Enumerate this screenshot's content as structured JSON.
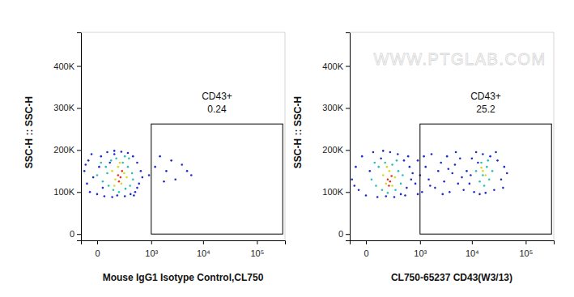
{
  "chart_data": [
    {
      "type": "scatter",
      "xlabel": "Mouse IgG1 Isotype Control,CL750",
      "ylabel": "SSC-H :: SSC-H",
      "log": "x",
      "xlim": [
        -110,
        330000
      ],
      "ylim": [
        -15000,
        480000
      ],
      "xticks": [
        0,
        {
          "value": 1000,
          "label": "10³"
        },
        {
          "value": 10000,
          "label": "10⁴"
        },
        {
          "value": 100000,
          "label": "10⁵"
        }
      ],
      "yticks": [
        0,
        {
          "value": 100000,
          "label": "100K"
        },
        {
          "value": 200000,
          "label": "200K"
        },
        {
          "value": 300000,
          "label": "300K"
        },
        {
          "value": 400000,
          "label": "400K"
        }
      ],
      "gate": {
        "name": "CD43+",
        "percent": 0.24,
        "x": [
          1000,
          300000
        ],
        "y": [
          0,
          262000
        ]
      },
      "series": [
        {
          "color": "#1f2ac8",
          "x": [
            -80,
            -60,
            -50,
            -40,
            -30,
            -20,
            0,
            10,
            20,
            30,
            40,
            60,
            80,
            100,
            120,
            150,
            200,
            250,
            300,
            350,
            400,
            450,
            500,
            550,
            600,
            650,
            500,
            -70,
            420,
            120,
            900,
            1200,
            1500,
            2000,
            2500,
            3000,
            4000,
            5000,
            6000,
            1800
          ],
          "values": [
            150000,
            120000,
            175000,
            100000,
            190000,
            135000,
            95000,
            160000,
            185000,
            110000,
            90000,
            195000,
            170000,
            88000,
            198000,
            92000,
            196000,
            90000,
            193000,
            95000,
            185000,
            100000,
            170000,
            120000,
            150000,
            135000,
            110000,
            165000,
            92000,
            190000,
            140000,
            160000,
            185000,
            150000,
            175000,
            130000,
            165000,
            150000,
            140000,
            125000
          ]
        },
        {
          "color": "#27c0b0",
          "x": [
            0,
            30,
            50,
            70,
            90,
            110,
            140,
            170,
            220,
            260,
            300,
            340,
            380,
            400,
            60,
            320,
            20,
            250
          ],
          "values": [
            140000,
            125000,
            160000,
            115000,
            175000,
            105000,
            180000,
            100000,
            170000,
            108000,
            160000,
            115000,
            145000,
            130000,
            145000,
            180000,
            170000,
            185000
          ]
        },
        {
          "color": "#d8d820",
          "x": [
            100,
            130,
            160,
            200,
            240,
            280,
            180,
            120
          ],
          "values": [
            150000,
            130000,
            160000,
            120000,
            145000,
            135000,
            170000,
            115000
          ]
        },
        {
          "color": "#e03020",
          "x": [
            160,
            190,
            210,
            170
          ],
          "values": [
            140000,
            135000,
            150000,
            125000
          ]
        }
      ]
    },
    {
      "type": "scatter",
      "xlabel": "CL750-65237 CD43(W3/13)",
      "ylabel": "SSC-H :: SSC-H",
      "watermark": "WWW.PTGLAB.COM",
      "log": "x",
      "xlim": [
        -110,
        330000
      ],
      "ylim": [
        -15000,
        480000
      ],
      "xticks": [
        0,
        {
          "value": 1000,
          "label": "10³"
        },
        {
          "value": 10000,
          "label": "10⁴"
        },
        {
          "value": 100000,
          "label": "10⁵"
        }
      ],
      "yticks": [
        0,
        {
          "value": 100000,
          "label": "100K"
        },
        {
          "value": 200000,
          "label": "200K"
        },
        {
          "value": 300000,
          "label": "300K"
        },
        {
          "value": 400000,
          "label": "400K"
        }
      ],
      "gate": {
        "name": "CD43+",
        "percent": 25.2,
        "x": [
          1000,
          300000
        ],
        "y": [
          0,
          262000
        ]
      },
      "series": [
        {
          "color": "#1f2ac8",
          "x": [
            -90,
            -60,
            -40,
            -20,
            0,
            20,
            40,
            70,
            100,
            150,
            200,
            260,
            320,
            380,
            450,
            520,
            600,
            650,
            700,
            -70,
            480,
            120,
            560,
            800,
            900,
            1000,
            1100,
            1300,
            1500,
            1700,
            2000,
            2300,
            2600,
            3000,
            3400,
            3800,
            4300,
            4800,
            5500,
            6000,
            6500,
            7000,
            1200,
            2800,
            1600,
            5000,
            3600,
            900,
            8000,
            9000,
            10000,
            11000,
            12000,
            14000,
            16000,
            18000,
            22000,
            26000,
            30000,
            35000,
            40000,
            45000,
            9500,
            13000,
            28000,
            38000
          ],
          "values": [
            130000,
            160000,
            105000,
            185000,
            92000,
            150000,
            195000,
            88000,
            180000,
            90000,
            195000,
            88000,
            190000,
            95000,
            175000,
            110000,
            160000,
            130000,
            145000,
            115000,
            92000,
            198000,
            185000,
            120000,
            175000,
            140000,
            100000,
            160000,
            130000,
            190000,
            110000,
            150000,
            170000,
            125000,
            185000,
            100000,
            145000,
            165000,
            120000,
            180000,
            135000,
            105000,
            185000,
            95000,
            115000,
            195000,
            155000,
            95000,
            150000,
            120000,
            180000,
            100000,
            195000,
            95000,
            190000,
            98000,
            185000,
            105000,
            175000,
            130000,
            160000,
            145000,
            140000,
            170000,
            195000,
            110000
          ]
        },
        {
          "color": "#27c0b0",
          "x": [
            30,
            60,
            80,
            110,
            140,
            170,
            230,
            280,
            330,
            380,
            420,
            50,
            300,
            12000,
            14000,
            15000,
            17000,
            19000,
            21000,
            24000,
            16000,
            20000
          ],
          "values": [
            130000,
            115000,
            160000,
            105000,
            170000,
            98000,
            165000,
            105000,
            150000,
            120000,
            140000,
            170000,
            175000,
            150000,
            125000,
            170000,
            115000,
            160000,
            130000,
            150000,
            140000,
            175000
          ]
        },
        {
          "color": "#d8d820",
          "x": [
            120,
            150,
            190,
            230,
            270,
            160,
            16000,
            18000,
            15000
          ],
          "values": [
            140000,
            120000,
            150000,
            115000,
            135000,
            160000,
            150000,
            140000,
            158000
          ]
        },
        {
          "color": "#e03020",
          "x": [
            170,
            200,
            220,
            185
          ],
          "values": [
            130000,
            125000,
            138000,
            115000
          ]
        }
      ]
    }
  ]
}
